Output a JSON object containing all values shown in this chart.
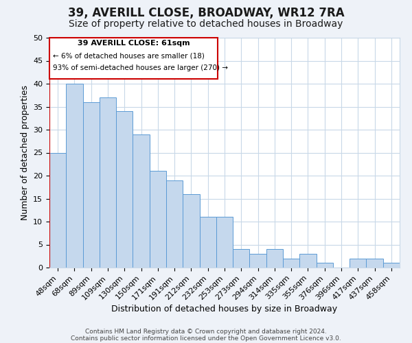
{
  "title": "39, AVERILL CLOSE, BROADWAY, WR12 7RA",
  "subtitle": "Size of property relative to detached houses in Broadway",
  "xlabel": "Distribution of detached houses by size in Broadway",
  "ylabel": "Number of detached properties",
  "footer_line1": "Contains HM Land Registry data © Crown copyright and database right 2024.",
  "footer_line2": "Contains public sector information licensed under the Open Government Licence v3.0.",
  "annotation_title": "39 AVERILL CLOSE: 61sqm",
  "annotation_line2": "← 6% of detached houses are smaller (18)",
  "annotation_line3": "93% of semi-detached houses are larger (270) →",
  "bar_labels": [
    "48sqm",
    "68sqm",
    "89sqm",
    "109sqm",
    "130sqm",
    "150sqm",
    "171sqm",
    "191sqm",
    "212sqm",
    "232sqm",
    "253sqm",
    "273sqm",
    "294sqm",
    "314sqm",
    "335sqm",
    "355sqm",
    "376sqm",
    "396sqm",
    "417sqm",
    "437sqm",
    "458sqm"
  ],
  "bar_values": [
    25,
    40,
    36,
    37,
    34,
    29,
    21,
    19,
    16,
    11,
    11,
    4,
    3,
    4,
    2,
    3,
    1,
    0,
    2,
    2,
    1
  ],
  "bar_color": "#c5d8ed",
  "bar_edge_color": "#5b9bd5",
  "marker_color": "#cc0000",
  "ylim": [
    0,
    50
  ],
  "yticks": [
    0,
    5,
    10,
    15,
    20,
    25,
    30,
    35,
    40,
    45,
    50
  ],
  "background_color": "#eef2f8",
  "plot_background": "#ffffff",
  "grid_color": "#c8d8e8",
  "title_fontsize": 12,
  "subtitle_fontsize": 10,
  "axis_label_fontsize": 9,
  "tick_fontsize": 8,
  "footer_fontsize": 6.5
}
